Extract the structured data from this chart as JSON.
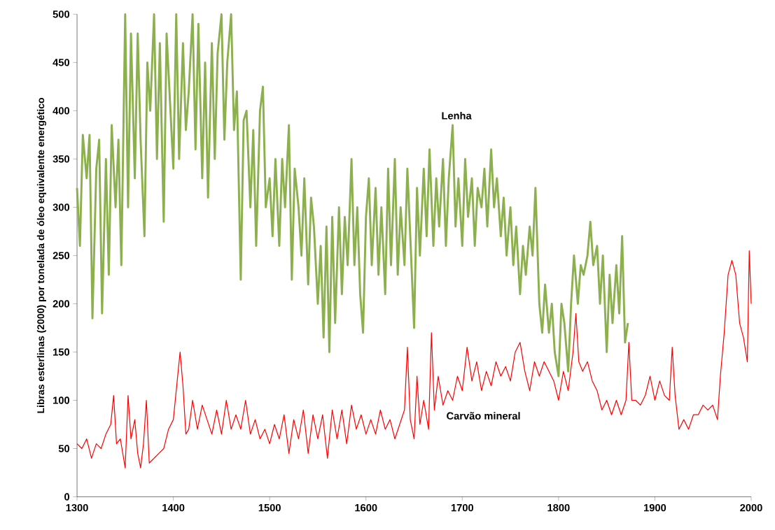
{
  "chart_data": {
    "type": "line",
    "ylabel": "Libras esterlinas (2000) por tonelada de óleo equivalente energético",
    "xlim": [
      1300,
      2000
    ],
    "ylim": [
      0,
      500
    ],
    "xticks": [
      1300,
      1400,
      1500,
      1600,
      1700,
      1800,
      1900,
      2000
    ],
    "yticks": [
      0,
      50,
      100,
      150,
      200,
      250,
      300,
      350,
      400,
      450,
      500
    ],
    "grid": false,
    "legend": false,
    "series": [
      {
        "name": "Lenha",
        "color": "#8db04f",
        "x": [
          1300,
          1303,
          1306,
          1310,
          1313,
          1316,
          1320,
          1323,
          1326,
          1330,
          1333,
          1336,
          1340,
          1343,
          1346,
          1350,
          1353,
          1356,
          1360,
          1363,
          1366,
          1370,
          1373,
          1376,
          1380,
          1383,
          1386,
          1390,
          1393,
          1396,
          1400,
          1403,
          1406,
          1410,
          1413,
          1416,
          1420,
          1423,
          1426,
          1430,
          1433,
          1436,
          1440,
          1443,
          1446,
          1450,
          1453,
          1456,
          1460,
          1463,
          1466,
          1470,
          1473,
          1476,
          1480,
          1483,
          1486,
          1490,
          1493,
          1496,
          1500,
          1503,
          1506,
          1510,
          1513,
          1516,
          1520,
          1523,
          1526,
          1530,
          1533,
          1536,
          1540,
          1543,
          1546,
          1550,
          1553,
          1556,
          1559,
          1562,
          1565,
          1568,
          1572,
          1575,
          1578,
          1581,
          1585,
          1588,
          1591,
          1594,
          1597,
          1600,
          1603,
          1606,
          1610,
          1613,
          1616,
          1620,
          1623,
          1626,
          1630,
          1633,
          1636,
          1640,
          1643,
          1646,
          1650,
          1653,
          1656,
          1660,
          1663,
          1666,
          1670,
          1673,
          1676,
          1680,
          1683,
          1686,
          1690,
          1693,
          1696,
          1700,
          1703,
          1706,
          1710,
          1713,
          1716,
          1720,
          1723,
          1726,
          1730,
          1733,
          1736,
          1740,
          1743,
          1746,
          1750,
          1753,
          1756,
          1760,
          1763,
          1766,
          1770,
          1773,
          1776,
          1780,
          1783,
          1786,
          1790,
          1793,
          1796,
          1800,
          1803,
          1806,
          1810,
          1813,
          1816,
          1820,
          1823,
          1826,
          1830,
          1833,
          1836,
          1840,
          1843,
          1846,
          1850,
          1853,
          1856,
          1860,
          1863,
          1866,
          1869,
          1872
        ],
        "values": [
          320,
          260,
          375,
          330,
          375,
          185,
          340,
          370,
          190,
          350,
          230,
          385,
          300,
          370,
          240,
          500,
          300,
          480,
          330,
          480,
          370,
          270,
          450,
          400,
          500,
          350,
          470,
          285,
          480,
          420,
          340,
          500,
          350,
          470,
          380,
          420,
          500,
          360,
          490,
          330,
          450,
          310,
          470,
          350,
          460,
          500,
          370,
          450,
          500,
          380,
          420,
          225,
          390,
          400,
          300,
          380,
          260,
          400,
          425,
          300,
          330,
          270,
          350,
          260,
          350,
          300,
          385,
          225,
          340,
          300,
          250,
          330,
          220,
          310,
          280,
          200,
          260,
          165,
          280,
          150,
          290,
          180,
          300,
          210,
          290,
          240,
          350,
          240,
          300,
          210,
          170,
          290,
          330,
          240,
          320,
          230,
          300,
          210,
          340,
          240,
          350,
          230,
          300,
          240,
          340,
          270,
          175,
          320,
          250,
          340,
          270,
          360,
          260,
          330,
          280,
          350,
          260,
          330,
          385,
          280,
          330,
          260,
          350,
          290,
          330,
          260,
          320,
          300,
          340,
          280,
          360,
          300,
          330,
          270,
          310,
          250,
          300,
          240,
          280,
          210,
          260,
          230,
          280,
          250,
          320,
          200,
          170,
          220,
          170,
          200,
          150,
          125,
          200,
          180,
          130,
          200,
          250,
          200,
          240,
          230,
          250,
          285,
          240,
          260,
          200,
          250,
          150,
          230,
          180,
          240,
          190,
          270,
          160,
          180
        ]
      },
      {
        "name": "Carvão mineral",
        "color": "#ff0000",
        "x": [
          1300,
          1305,
          1310,
          1315,
          1320,
          1325,
          1330,
          1335,
          1338,
          1341,
          1345,
          1350,
          1353,
          1356,
          1360,
          1363,
          1366,
          1369,
          1372,
          1375,
          1380,
          1385,
          1390,
          1395,
          1400,
          1404,
          1407,
          1410,
          1413,
          1416,
          1420,
          1425,
          1430,
          1435,
          1440,
          1445,
          1450,
          1455,
          1460,
          1465,
          1470,
          1475,
          1480,
          1485,
          1490,
          1495,
          1500,
          1505,
          1510,
          1515,
          1520,
          1525,
          1530,
          1535,
          1540,
          1545,
          1550,
          1555,
          1560,
          1565,
          1570,
          1575,
          1580,
          1585,
          1590,
          1595,
          1600,
          1605,
          1610,
          1615,
          1620,
          1625,
          1630,
          1635,
          1640,
          1643,
          1646,
          1650,
          1653,
          1656,
          1660,
          1665,
          1668,
          1671,
          1675,
          1680,
          1685,
          1690,
          1695,
          1700,
          1705,
          1710,
          1715,
          1720,
          1725,
          1730,
          1735,
          1740,
          1745,
          1750,
          1755,
          1760,
          1765,
          1770,
          1775,
          1780,
          1785,
          1790,
          1795,
          1800,
          1805,
          1810,
          1815,
          1818,
          1821,
          1825,
          1830,
          1835,
          1840,
          1845,
          1850,
          1855,
          1860,
          1865,
          1870,
          1873,
          1876,
          1880,
          1885,
          1890,
          1895,
          1900,
          1905,
          1910,
          1915,
          1918,
          1921,
          1925,
          1930,
          1935,
          1940,
          1945,
          1950,
          1955,
          1960,
          1965,
          1968,
          1972,
          1976,
          1980,
          1984,
          1988,
          1992,
          1996,
          1998,
          2000
        ],
        "values": [
          55,
          50,
          60,
          40,
          55,
          50,
          65,
          75,
          105,
          55,
          60,
          30,
          105,
          60,
          80,
          45,
          30,
          55,
          100,
          35,
          40,
          45,
          50,
          70,
          80,
          120,
          150,
          115,
          65,
          70,
          100,
          70,
          95,
          80,
          65,
          90,
          65,
          100,
          70,
          85,
          70,
          100,
          65,
          80,
          60,
          70,
          55,
          75,
          60,
          85,
          45,
          80,
          60,
          90,
          45,
          85,
          60,
          85,
          40,
          90,
          60,
          90,
          55,
          95,
          70,
          85,
          65,
          80,
          65,
          90,
          70,
          80,
          60,
          75,
          90,
          155,
          80,
          60,
          125,
          75,
          100,
          70,
          170,
          90,
          125,
          95,
          110,
          100,
          125,
          110,
          155,
          120,
          140,
          110,
          130,
          115,
          140,
          125,
          135,
          120,
          150,
          160,
          130,
          110,
          140,
          125,
          140,
          130,
          120,
          100,
          130,
          110,
          150,
          190,
          140,
          130,
          140,
          120,
          110,
          90,
          100,
          85,
          100,
          85,
          100,
          160,
          100,
          100,
          95,
          105,
          125,
          100,
          120,
          105,
          100,
          155,
          105,
          70,
          80,
          70,
          85,
          85,
          95,
          90,
          95,
          80,
          125,
          170,
          230,
          245,
          230,
          180,
          165,
          140,
          255,
          200
        ]
      }
    ]
  }
}
